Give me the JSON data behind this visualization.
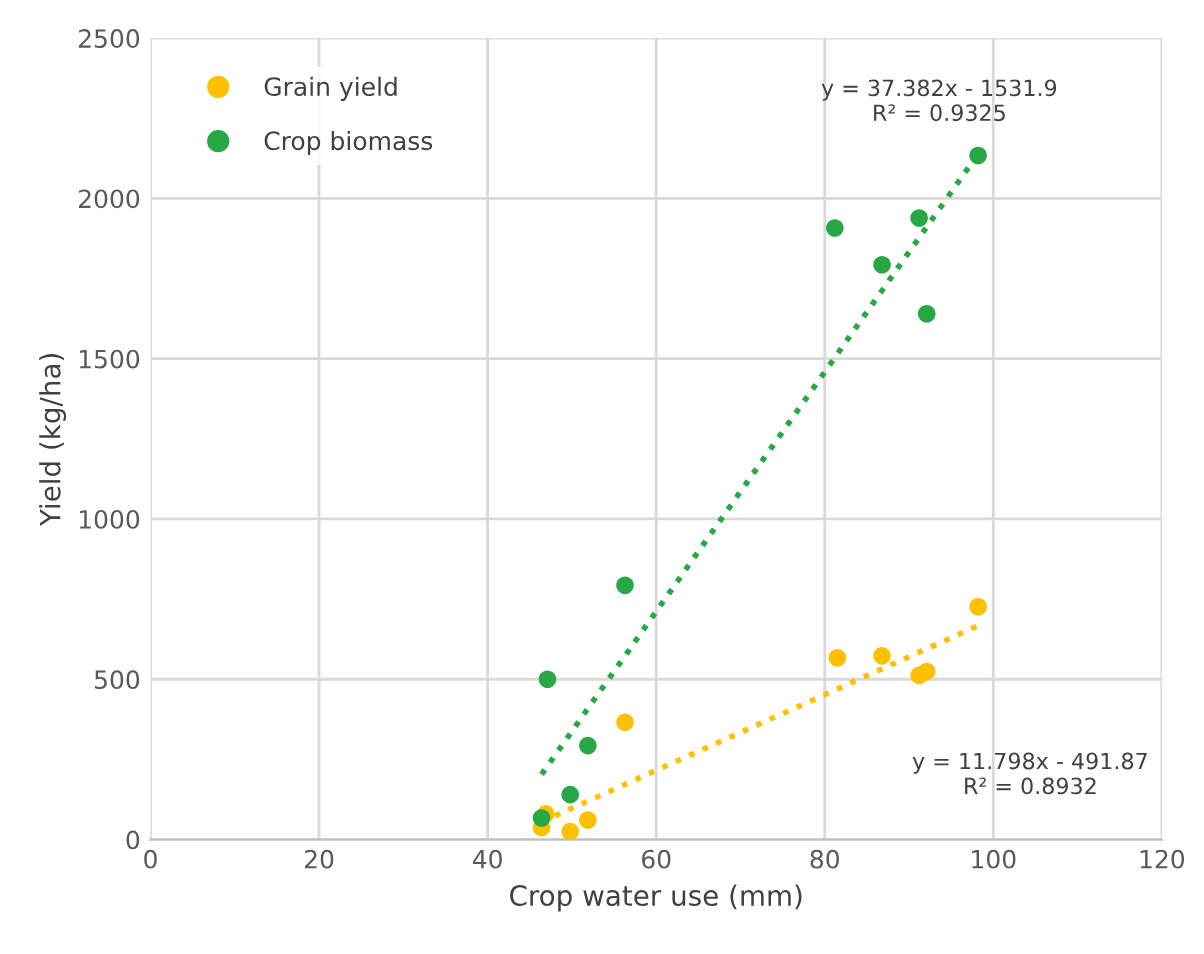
{
  "chart_data": {
    "type": "scatter",
    "xlabel": "Crop water use (mm)",
    "ylabel": "Yield (kg/ha)",
    "xlim": [
      0,
      120
    ],
    "xticks": [
      0,
      20,
      40,
      60,
      80,
      100,
      120
    ],
    "ylim": [
      0,
      2500
    ],
    "yticks": [
      0,
      500,
      1000,
      1500,
      2000,
      2500
    ],
    "grid": true,
    "legend": "top left",
    "series": [
      {
        "name": "Grain yield",
        "color": "#ffc000",
        "marker": "circle",
        "x": [
          46.4,
          46.9,
          49.8,
          51.9,
          56.3,
          81.5,
          86.8,
          91.2,
          92.1,
          98.2
        ],
        "values": [
          37,
          80,
          25,
          61,
          366,
          567,
          573,
          512,
          524,
          726
        ]
      },
      {
        "name": "Crop biomass",
        "color": "#27a844",
        "marker": "circle",
        "x": [
          46.4,
          47.1,
          49.8,
          51.9,
          56.3,
          81.2,
          86.8,
          91.2,
          92.1,
          98.2
        ],
        "values": [
          67,
          500,
          140,
          293,
          793,
          1908,
          1793,
          1939,
          1640,
          2134
        ]
      },
      {
        "color": "#ffc000",
        "type": "line",
        "line_style": "dotted",
        "x": [
          46.4,
          98.2
        ],
        "values": [
          55,
          667
        ]
      },
      {
        "color": "#27a844",
        "type": "line",
        "line_style": "dotted",
        "x": [
          46.4,
          98.2
        ],
        "values": [
          203,
          2139
        ]
      }
    ],
    "annotations": [
      "y = 37.382x - 1531.9\nR² = 0.9325",
      "y = 11.798x - 491.87\nR² = 0.8932"
    ]
  }
}
